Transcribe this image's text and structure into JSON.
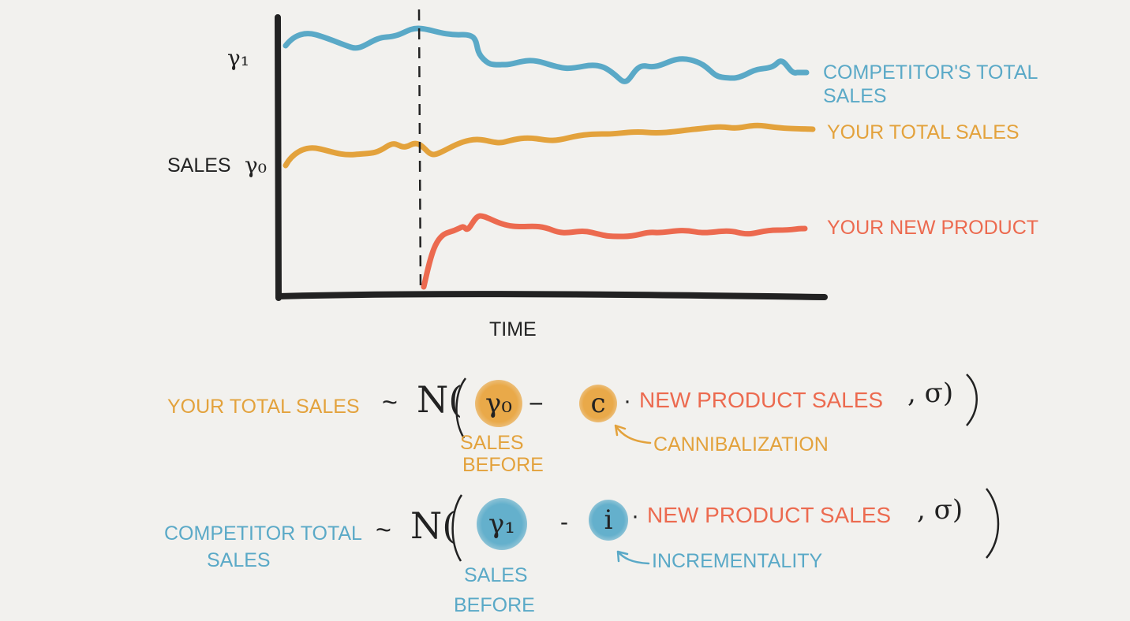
{
  "chart": {
    "y_axis_label": "SALES",
    "x_axis_label": "TIME",
    "y_tick_gamma1": "γ₁",
    "y_tick_gamma0": "γ₀",
    "legend": {
      "competitor_line1": "COMPETITOR'S TOTAL",
      "competitor_line2": "SALES",
      "your_total": "YOUR TOTAL SALES",
      "new_product": "YOUR NEW PRODUCT"
    },
    "colors": {
      "competitor": "#5aa9c7",
      "your_total": "#e3a23c",
      "new_product": "#ec6a4f",
      "axes": "#222222"
    }
  },
  "equation1": {
    "lhs": "YOUR TOTAL SALES",
    "tilde": "~",
    "dist": "N(",
    "param": "γ₀",
    "minus": "−",
    "coef": "c",
    "dot": "·",
    "term": "NEW PRODUCT SALES",
    "sigma": ", σ)",
    "note_param_line1": "SALES",
    "note_param_line2": "BEFORE",
    "note_coef": "CANNIBALIZATION"
  },
  "equation2": {
    "lhs_line1": "COMPETITOR TOTAL",
    "lhs_line2": "SALES",
    "tilde": "~",
    "dist": "N(",
    "param": "γ₁",
    "minus": "-",
    "coef": "i",
    "dot": "·",
    "term": "NEW PRODUCT SALES",
    "sigma": ", σ)",
    "note_param_line1": "SALES",
    "note_param_line2": "BEFORE",
    "note_coef": "INCREMENTALITY"
  }
}
